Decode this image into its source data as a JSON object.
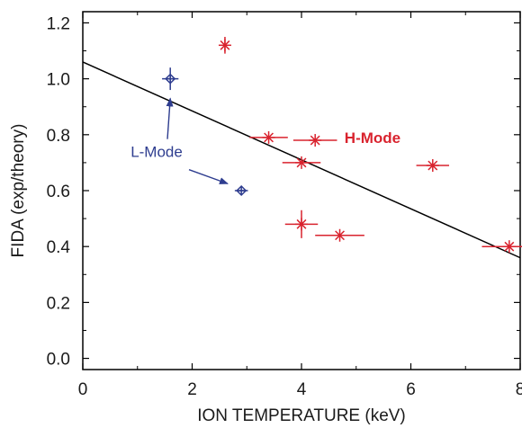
{
  "chart_data": {
    "type": "scatter",
    "xlabel": "ION TEMPERATURE (keV)",
    "ylabel": "FIDA (exp/theory)",
    "xlim": [
      0,
      8
    ],
    "ylim": [
      -0.04,
      1.24
    ],
    "x_ticks": [
      0,
      2,
      4,
      6,
      8
    ],
    "y_ticks": [
      0.0,
      0.2,
      0.4,
      0.6,
      0.8,
      1.0,
      1.2
    ],
    "x_tick_labels": [
      "0",
      "2",
      "4",
      "6",
      "8"
    ],
    "y_tick_labels": [
      "0.0",
      "0.2",
      "0.4",
      "0.6",
      "0.8",
      "1.0",
      "1.2"
    ],
    "grid": false,
    "series": [
      {
        "name": "L-Mode",
        "color": "#2e3d8f",
        "marker": "diamond-cross",
        "points": [
          {
            "x": 1.6,
            "y": 1.0,
            "xerr": 0.15,
            "yerr": 0.04
          },
          {
            "x": 2.9,
            "y": 0.6,
            "xerr": 0.12,
            "yerr": 0.0
          }
        ]
      },
      {
        "name": "H-Mode",
        "color": "#d9232e",
        "marker": "asterisk",
        "points": [
          {
            "x": 2.6,
            "y": 1.12,
            "xerr": 0.0,
            "yerr": 0.03
          },
          {
            "x": 3.4,
            "y": 0.79,
            "xerr": 0.35,
            "yerr": 0.0
          },
          {
            "x": 4.25,
            "y": 0.78,
            "xerr": 0.4,
            "yerr": 0.0
          },
          {
            "x": 4.0,
            "y": 0.7,
            "xerr": 0.35,
            "yerr": 0.0
          },
          {
            "x": 4.0,
            "y": 0.48,
            "xerr": 0.3,
            "yerr": 0.05
          },
          {
            "x": 4.7,
            "y": 0.44,
            "xerr": 0.45,
            "yerr": 0.0
          },
          {
            "x": 6.4,
            "y": 0.69,
            "xerr": 0.3,
            "yerr": 0.0
          },
          {
            "x": 7.8,
            "y": 0.4,
            "xerr": 0.5,
            "yerr": 0.0
          }
        ]
      }
    ],
    "fit_line": {
      "x": [
        0,
        8
      ],
      "y": [
        1.06,
        0.36
      ],
      "color": "#000000"
    },
    "annotations": [
      {
        "text": "L-Mode",
        "x": 1.35,
        "y": 0.72,
        "color": "#2e3d8f",
        "arrows_to": [
          [
            1.6,
            0.93
          ],
          [
            2.65,
            0.625
          ]
        ]
      },
      {
        "text": "H-Mode",
        "x": 5.3,
        "y": 0.77,
        "color": "#d9232e"
      }
    ]
  }
}
